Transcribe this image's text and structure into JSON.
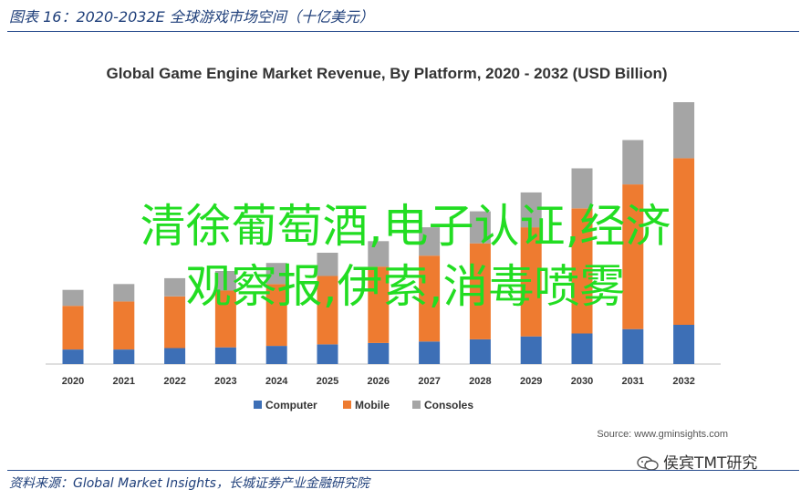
{
  "figure_caption": "图表 16：2020-2032E 全球游戏市场空间（十亿美元）",
  "footer_source": "资料来源：Global Market Insights，长城证券产业金融研究院",
  "overlay": {
    "line1": "清徐葡萄酒,电子认证,经济",
    "line2": "观察报,伊索,消毒喷雾"
  },
  "watermark_text": "侯宾TMT研究",
  "chart_data": {
    "type": "bar",
    "stacked": true,
    "title": "Global Game Engine Market Revenue, By Platform, 2020 - 2032 (USD Billion)",
    "source": "Source: www.gminsights.com",
    "categories": [
      "2020",
      "2021",
      "2022",
      "2023",
      "2024",
      "2025",
      "2026",
      "2027",
      "2028",
      "2029",
      "2030",
      "2031",
      "2032"
    ],
    "series": [
      {
        "name": "Computer",
        "color": "#3d6fb6",
        "values": [
          1.0,
          1.0,
          1.1,
          1.15,
          1.25,
          1.35,
          1.45,
          1.55,
          1.7,
          1.9,
          2.1,
          2.4,
          2.7
        ]
      },
      {
        "name": "Mobile",
        "color": "#ee7b30",
        "values": [
          3.0,
          3.3,
          3.55,
          3.9,
          4.25,
          4.7,
          5.25,
          5.9,
          6.6,
          7.5,
          8.6,
          9.95,
          11.45
        ]
      },
      {
        "name": "Consoles",
        "color": "#a5a5a5",
        "values": [
          1.1,
          1.2,
          1.25,
          1.35,
          1.45,
          1.6,
          1.75,
          1.95,
          2.2,
          2.4,
          2.75,
          3.05,
          3.85
        ]
      }
    ],
    "ylim": [
      0,
      18
    ],
    "legend_position": "bottom",
    "grid": false
  }
}
